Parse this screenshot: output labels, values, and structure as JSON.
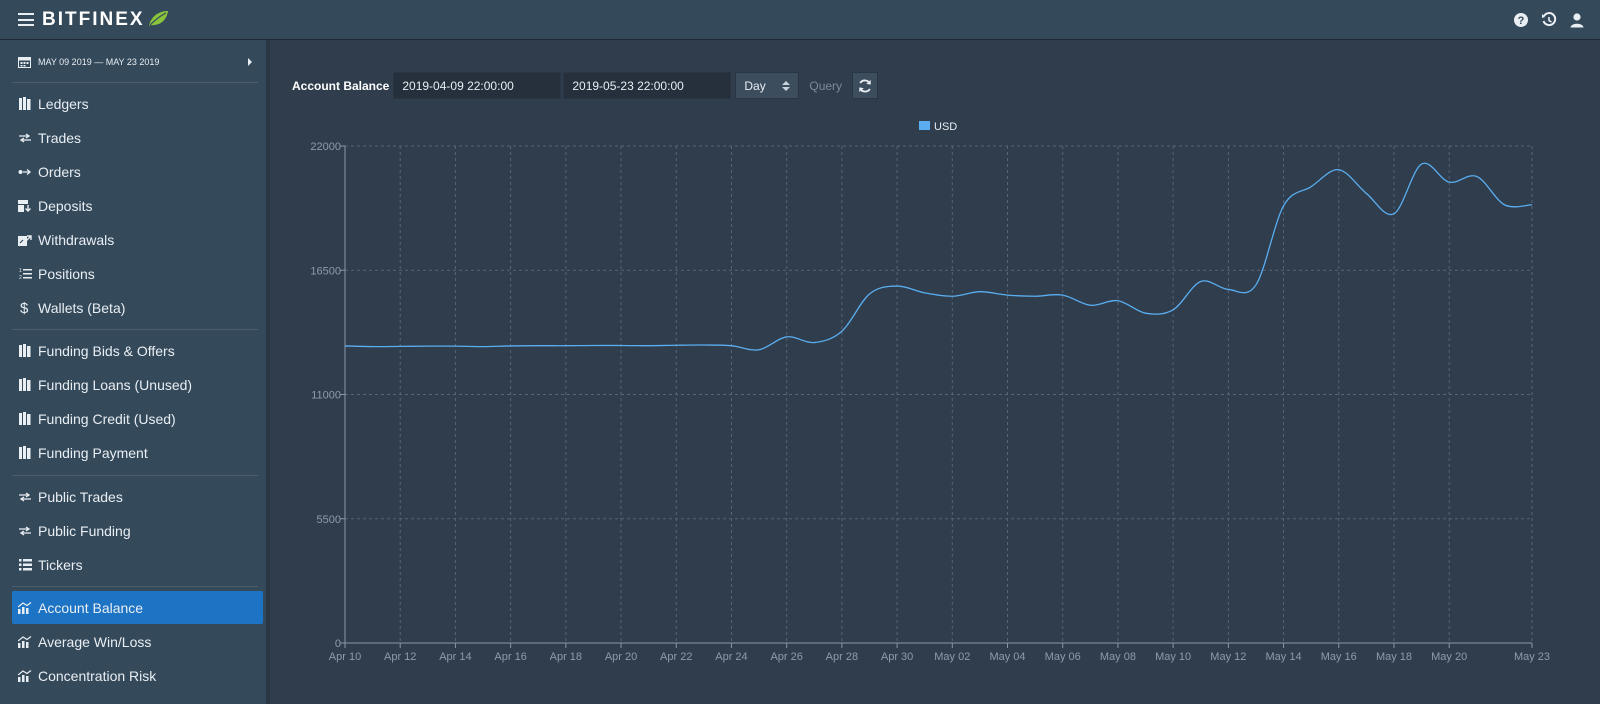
{
  "header": {
    "logo": "BITFINEX",
    "icons": [
      "menu-icon",
      "help-icon",
      "history-icon",
      "user-icon"
    ]
  },
  "sidebar": {
    "date_range": "MAY 09 2019 — MAY 23 2019",
    "items": [
      {
        "label": "Ledgers",
        "icon": "ledgers-icon"
      },
      {
        "label": "Trades",
        "icon": "trades-icon"
      },
      {
        "label": "Orders",
        "icon": "orders-icon"
      },
      {
        "label": "Deposits",
        "icon": "deposits-icon"
      },
      {
        "label": "Withdrawals",
        "icon": "withdrawals-icon"
      },
      {
        "label": "Positions",
        "icon": "positions-icon"
      },
      {
        "label": "Wallets (Beta)",
        "icon": "dollar-icon"
      },
      {
        "label": "Funding Bids & Offers",
        "icon": "funding-icon"
      },
      {
        "label": "Funding Loans (Unused)",
        "icon": "funding-icon"
      },
      {
        "label": "Funding Credit (Used)",
        "icon": "funding-icon"
      },
      {
        "label": "Funding Payment",
        "icon": "funding-icon"
      },
      {
        "label": "Public Trades",
        "icon": "trades-icon"
      },
      {
        "label": "Public Funding",
        "icon": "trades-icon"
      },
      {
        "label": "Tickers",
        "icon": "list-icon"
      },
      {
        "label": "Account Balance",
        "icon": "chart-icon",
        "active": true
      },
      {
        "label": "Average Win/Loss",
        "icon": "chart-icon"
      },
      {
        "label": "Concentration Risk",
        "icon": "chart-icon"
      }
    ]
  },
  "query": {
    "label": "Account Balance",
    "start": "2019-04-09 22:00:00",
    "end": "2019-05-23 22:00:00",
    "timeframe": "Day",
    "query_button": "Query"
  },
  "colors": {
    "accent": "#1e74c4",
    "series": "#5aaef0",
    "background": "#2f3d4d",
    "sidebar": "#34495a"
  },
  "chart_data": {
    "type": "line",
    "legend": [
      "USD"
    ],
    "legend_position": "top-center",
    "grid": true,
    "ylim": [
      0,
      22000
    ],
    "yticks": [
      0,
      5500,
      11000,
      16500,
      22000
    ],
    "xtick_labels": [
      "Apr 10",
      "Apr 12",
      "Apr 14",
      "Apr 16",
      "Apr 18",
      "Apr 20",
      "Apr 22",
      "Apr 24",
      "Apr 26",
      "Apr 28",
      "Apr 30",
      "May 02",
      "May 04",
      "May 06",
      "May 08",
      "May 10",
      "May 12",
      "May 14",
      "May 16",
      "May 18",
      "May 20",
      "May 23"
    ],
    "x": [
      "Apr 10",
      "Apr 11",
      "Apr 12",
      "Apr 13",
      "Apr 14",
      "Apr 15",
      "Apr 16",
      "Apr 17",
      "Apr 18",
      "Apr 19",
      "Apr 20",
      "Apr 21",
      "Apr 22",
      "Apr 23",
      "Apr 24",
      "Apr 25",
      "Apr 26",
      "Apr 27",
      "Apr 28",
      "Apr 29",
      "Apr 30",
      "May 01",
      "May 02",
      "May 03",
      "May 04",
      "May 05",
      "May 06",
      "May 07",
      "May 08",
      "May 09",
      "May 10",
      "May 11",
      "May 12",
      "May 13",
      "May 14",
      "May 15",
      "May 16",
      "May 17",
      "May 18",
      "May 19",
      "May 20",
      "May 21",
      "May 22",
      "May 23"
    ],
    "series": [
      {
        "name": "USD",
        "values": [
          13150,
          13120,
          13130,
          13140,
          13140,
          13120,
          13150,
          13160,
          13160,
          13170,
          13170,
          13160,
          13180,
          13190,
          13160,
          12980,
          13550,
          13300,
          13800,
          15450,
          15800,
          15500,
          15350,
          15550,
          15400,
          15350,
          15400,
          14950,
          15150,
          14600,
          14750,
          16000,
          15650,
          15850,
          19350,
          20200,
          20950,
          19900,
          19000,
          21200,
          20400,
          20650,
          19400,
          19400
        ]
      }
    ]
  }
}
